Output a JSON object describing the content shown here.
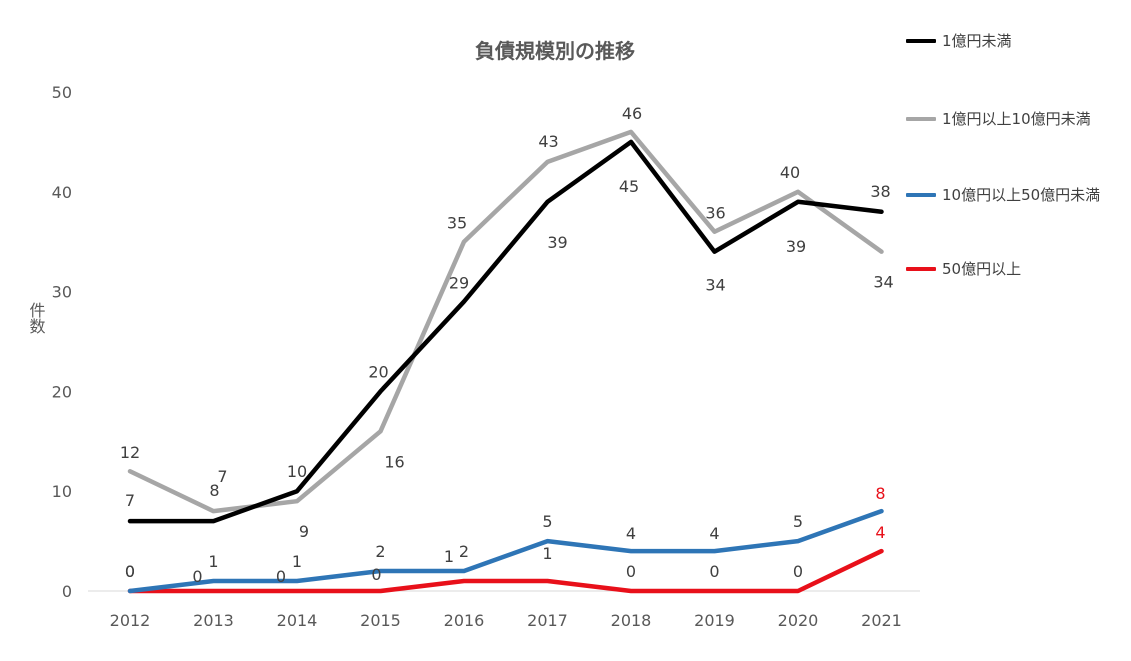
{
  "chart_data": {
    "type": "line",
    "title": "負債規模別の推移",
    "ylabel": "件数",
    "xlabel": "",
    "categories": [
      "2012",
      "2013",
      "2014",
      "2015",
      "2016",
      "2017",
      "2018",
      "2019",
      "2020",
      "2021"
    ],
    "ylim": [
      0,
      50
    ],
    "yticks": [
      0,
      10,
      20,
      30,
      40,
      50
    ],
    "grid": false,
    "legend_position": "right",
    "series": [
      {
        "name": "1億円未満",
        "color": "#000000",
        "values": [
          7,
          7,
          10,
          20,
          29,
          39,
          45,
          34,
          39,
          38
        ],
        "labels": [
          "7",
          "7",
          "10",
          "20",
          "29",
          "39",
          "45",
          "34",
          "39",
          "38"
        ]
      },
      {
        "name": "1億円以上10億円未満",
        "color": "#a6a6a6",
        "values": [
          12,
          8,
          9,
          16,
          35,
          43,
          46,
          36,
          40,
          34
        ],
        "labels": [
          "12",
          "8",
          "9",
          "16",
          "35",
          "43",
          "46",
          "36",
          "40",
          "34"
        ]
      },
      {
        "name": "10億円以上50億円未満",
        "color": "#2e75b6",
        "values": [
          0,
          1,
          1,
          2,
          2,
          5,
          4,
          4,
          5,
          8
        ],
        "labels": [
          "0",
          "1",
          "1",
          "2",
          "2",
          "5",
          "4",
          "4",
          "5",
          "8"
        ]
      },
      {
        "name": "50億円以上",
        "color": "#e8101a",
        "values": [
          0,
          0,
          0,
          0,
          1,
          1,
          0,
          0,
          0,
          4
        ],
        "labels": [
          "0",
          "0",
          "0",
          "0",
          "1",
          "1",
          "0",
          "0",
          "0",
          "4"
        ]
      }
    ]
  }
}
